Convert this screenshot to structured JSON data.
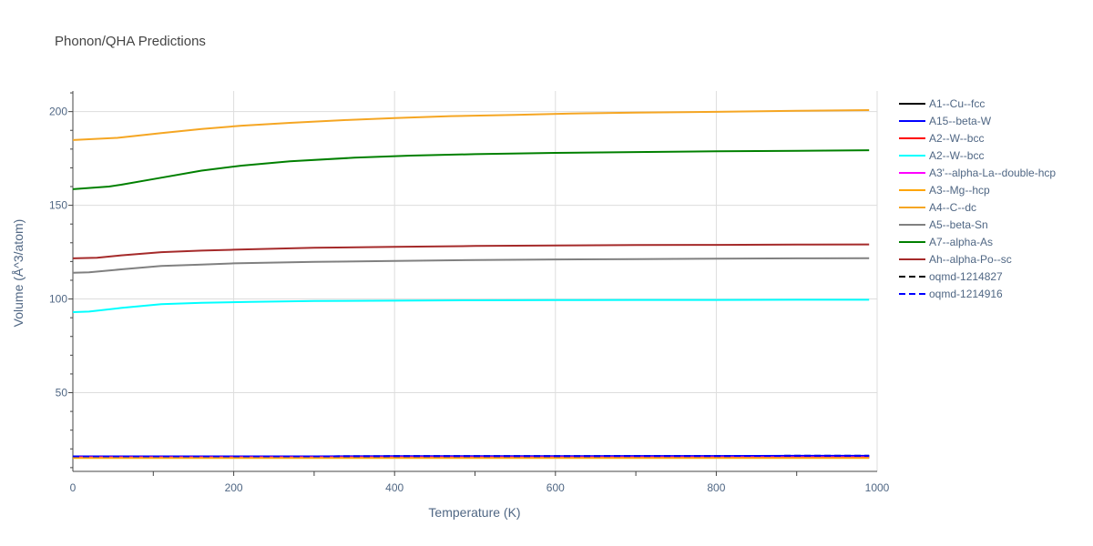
{
  "chart_data": {
    "type": "line",
    "title": "Phonon/QHA Predictions",
    "xlabel": "Temperature (K)",
    "ylabel": "Volume (Å^3/atom)",
    "xlim": [
      0,
      1000
    ],
    "ylim": [
      8,
      211
    ],
    "x_ticks": [
      0,
      200,
      400,
      600,
      800,
      1000
    ],
    "y_ticks": [
      50,
      100,
      150,
      200
    ],
    "grid": true,
    "legend_position": "right",
    "series": [
      {
        "name": "A1--Cu--fcc",
        "color": "#000000",
        "dash": false,
        "x": [
          0,
          100,
          200,
          300,
          400,
          500,
          600,
          700,
          800,
          900,
          990
        ],
        "y": [
          15.4,
          15.4,
          15.4,
          15.4,
          15.4,
          15.4,
          15.4,
          15.4,
          15.4,
          15.4,
          15.4
        ]
      },
      {
        "name": "A15--beta-W",
        "color": "#0000ff",
        "dash": false,
        "x": [
          0,
          100,
          200,
          300,
          400,
          500,
          600,
          700,
          800,
          900,
          990
        ],
        "y": [
          16.0,
          16.0,
          16.0,
          16.0,
          16.1,
          16.1,
          16.1,
          16.2,
          16.2,
          16.3,
          16.3
        ]
      },
      {
        "name": "A2--W--bcc",
        "color": "#ff0000",
        "dash": false,
        "x": [
          0,
          100,
          200,
          300,
          400,
          500,
          600,
          700,
          800,
          900,
          990
        ],
        "y": [
          15.6,
          15.6,
          15.6,
          15.6,
          15.6,
          15.6,
          15.6,
          15.6,
          15.6,
          15.6,
          15.6
        ]
      },
      {
        "name": "A2--W--bcc",
        "color": "#00ffff",
        "dash": false,
        "x": [
          0,
          20,
          60,
          110,
          160,
          220,
          300,
          400,
          500,
          600,
          700,
          800,
          900,
          990
        ],
        "y": [
          93,
          93.3,
          95.2,
          97.2,
          98.0,
          98.5,
          98.9,
          99.1,
          99.3,
          99.4,
          99.5,
          99.5,
          99.6,
          99.6
        ]
      },
      {
        "name": "A3'--alpha-La--double-hcp",
        "color": "#ff00ff",
        "dash": false,
        "x": [
          0,
          100,
          200,
          300,
          400,
          500,
          600,
          700,
          800,
          900,
          990
        ],
        "y": [
          15.5,
          15.5,
          15.5,
          15.5,
          15.5,
          15.5,
          15.5,
          15.5,
          15.5,
          15.5,
          15.5
        ]
      },
      {
        "name": "A3--Mg--hcp",
        "color": "#ffa500",
        "dash": false,
        "x": [
          0,
          100,
          200,
          300,
          400,
          500,
          600,
          700,
          800,
          900,
          990
        ],
        "y": [
          15.2,
          15.2,
          15.2,
          15.2,
          15.2,
          15.2,
          15.2,
          15.2,
          15.2,
          15.2,
          15.2
        ]
      },
      {
        "name": "A4--C--dc",
        "color": "#f5a623",
        "dash": false,
        "x": [
          0,
          55,
          110,
          160,
          210,
          270,
          340,
          400,
          470,
          550,
          620,
          700,
          800,
          900,
          990
        ],
        "y": [
          184.8,
          186.0,
          188.5,
          190.7,
          192.5,
          194.0,
          195.5,
          196.6,
          197.6,
          198.3,
          199.0,
          199.5,
          199.9,
          200.4,
          200.8
        ]
      },
      {
        "name": "A5--beta-Sn",
        "color": "#808080",
        "dash": false,
        "x": [
          0,
          20,
          60,
          110,
          160,
          200,
          300,
          400,
          500,
          600,
          700,
          800,
          900,
          990
        ],
        "y": [
          114.0,
          114.2,
          115.8,
          117.6,
          118.4,
          119.0,
          119.8,
          120.3,
          120.8,
          121.1,
          121.3,
          121.5,
          121.7,
          121.8
        ]
      },
      {
        "name": "A7--alpha-As",
        "color": "#008000",
        "dash": false,
        "x": [
          0,
          45,
          60,
          100,
          160,
          210,
          270,
          350,
          420,
          500,
          600,
          700,
          800,
          900,
          990
        ],
        "y": [
          158.6,
          160.0,
          161.0,
          164.0,
          168.5,
          171.2,
          173.5,
          175.4,
          176.5,
          177.3,
          178.0,
          178.4,
          178.8,
          179.1,
          179.4
        ]
      },
      {
        "name": "Ah--alpha-Po--sc",
        "color": "#a52a2a",
        "dash": false,
        "x": [
          0,
          30,
          60,
          110,
          160,
          200,
          300,
          400,
          500,
          600,
          700,
          800,
          900,
          990
        ],
        "y": [
          121.7,
          122.0,
          123.3,
          125.0,
          125.8,
          126.3,
          127.3,
          127.8,
          128.3,
          128.6,
          128.8,
          128.9,
          129.0,
          129.1
        ]
      },
      {
        "name": "oqmd-1214827",
        "color": "#000000",
        "dash": true,
        "x": [
          0,
          100,
          200,
          300,
          400,
          500,
          600,
          700,
          800,
          900,
          990
        ],
        "y": [
          16.0,
          16.0,
          16.0,
          16.0,
          16.1,
          16.1,
          16.1,
          16.2,
          16.2,
          16.3,
          16.3
        ]
      },
      {
        "name": "oqmd-1214916",
        "color": "#0000ff",
        "dash": true,
        "x": [
          0,
          100,
          200,
          300,
          400,
          500,
          600,
          700,
          800,
          900,
          990
        ],
        "y": [
          16.0,
          16.0,
          16.0,
          16.0,
          16.1,
          16.1,
          16.1,
          16.2,
          16.2,
          16.3,
          16.3
        ]
      }
    ]
  }
}
